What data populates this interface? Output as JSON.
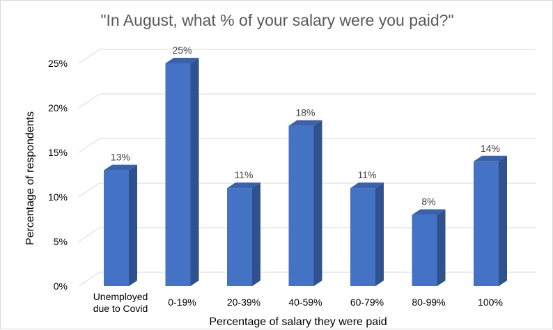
{
  "chart_data": {
    "type": "bar",
    "title": "\"In August, what % of your salary were you paid?\"",
    "xlabel": "Percentage of salary they were paid",
    "ylabel": "Percentage of respondents",
    "categories": [
      [
        "Unemployed",
        "due to Covid"
      ],
      [
        "0-19%"
      ],
      [
        "20-39%"
      ],
      [
        "40-59%"
      ],
      [
        "60-79%"
      ],
      [
        "80-99%"
      ],
      [
        "100%"
      ]
    ],
    "values": [
      13,
      25,
      11,
      18,
      11,
      8,
      14
    ],
    "data_labels": [
      "13%",
      "25%",
      "11%",
      "18%",
      "11%",
      "8%",
      "14%"
    ],
    "y_ticks": [
      0,
      5,
      10,
      15,
      20,
      25
    ],
    "y_tick_labels": [
      "0%",
      "5%",
      "10%",
      "15%",
      "20%",
      "25%"
    ],
    "ylim": [
      0,
      25
    ],
    "grid": true,
    "style": "3d-column",
    "colors": {
      "bar_front": "#4472c4",
      "bar_side": "#2f528f",
      "bar_top": "#3a62ab",
      "gridline": "#d9d9d9"
    }
  }
}
